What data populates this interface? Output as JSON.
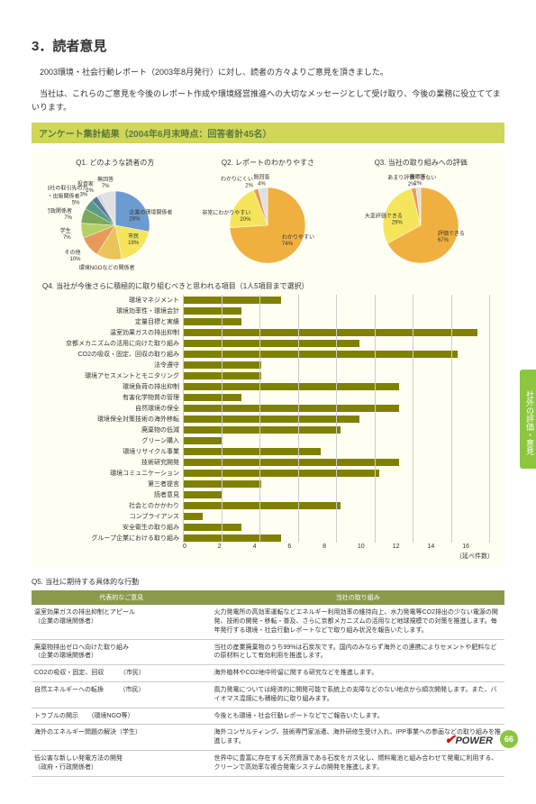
{
  "page": {
    "title": "3．読者意見",
    "intro1": "2003環境・社会行動レポート（2003年8月発行）に対し、読者の方々よりご意見を頂きました。",
    "intro2": "当社は、これらのご意見を今後のレポート作成や環境経営推進への大切なメッセージとして受け取り、今後の業務に役立ててまいります。",
    "banner": "アンケート集計結果（2004年6月末時点：回答者計45名）"
  },
  "q1": {
    "title": "Q1. どのような読者の方",
    "slices": [
      {
        "label": "企業の環境関係者",
        "pct": 28,
        "color": "#6b9bd1"
      },
      {
        "label": "市民",
        "pct": 19,
        "color": "#f5e55a"
      },
      {
        "label": "環境NGOなどの関係者",
        "pct": 12,
        "color": "#e8c45a"
      },
      {
        "label": "その他",
        "pct": 10,
        "color": "#e89a5a"
      },
      {
        "label": "学生",
        "pct": 7,
        "color": "#b5d065"
      },
      {
        "label": "政府・行政関係者",
        "pct": 7,
        "color": "#7ba85a"
      },
      {
        "label": "報道・出版関係者",
        "pct": 5,
        "color": "#5a9a8a"
      },
      {
        "label": "当社の取引先の方",
        "pct": 3,
        "color": "#5a7a9a"
      },
      {
        "label": "投資家",
        "pct": 2,
        "color": "#d4d4e0"
      },
      {
        "label": "無回答",
        "pct": 7,
        "color": "#e0e0e0"
      }
    ]
  },
  "q2": {
    "title": "Q2. レポートのわかりやすさ",
    "slices": [
      {
        "label": "わかりやすい",
        "pct": 74,
        "color": "#f0b040"
      },
      {
        "label": "非常にわかりやすい",
        "pct": 20,
        "color": "#f5e55a"
      },
      {
        "label": "わかりにくい",
        "pct": 2,
        "color": "#e89a5a"
      },
      {
        "label": "無回答",
        "pct": 4,
        "color": "#e0e0e0"
      }
    ]
  },
  "q3": {
    "title": "Q3. 当社の取り組みへの評価",
    "slices": [
      {
        "label": "評価できる",
        "pct": 67,
        "color": "#f0b040"
      },
      {
        "label": "大変評価できる",
        "pct": 29,
        "color": "#f5e55a"
      },
      {
        "label": "あまり評価できない",
        "pct": 2,
        "color": "#e89a5a"
      },
      {
        "label": "無回答",
        "pct": 2,
        "color": "#e0e0e0"
      }
    ]
  },
  "q4": {
    "title": "Q4. 当社が今後さらに積極的に取り組むべきと思われる項目（1人5項目まで選択）",
    "max": 16,
    "unit": "（延べ件数）",
    "items": [
      {
        "label": "環境マネジメント",
        "value": 5
      },
      {
        "label": "環境効率性・環境会計",
        "value": 3
      },
      {
        "label": "定量目標と実績",
        "value": 3
      },
      {
        "label": "温室効果ガスの排出抑制",
        "value": 15
      },
      {
        "label": "京都メカニズムの活用に向けた取り組み",
        "value": 9
      },
      {
        "label": "CO2の吸収・固定、回収の取り組み",
        "value": 14
      },
      {
        "label": "法令遵守",
        "value": 4
      },
      {
        "label": "環境アセスメントとモニタリング",
        "value": 4
      },
      {
        "label": "環境負荷の排出抑制",
        "value": 11
      },
      {
        "label": "有害化学物質の管理",
        "value": 3
      },
      {
        "label": "自然環境の保全",
        "value": 11
      },
      {
        "label": "環境保全対策技術の海外移転",
        "value": 9
      },
      {
        "label": "廃棄物の低減",
        "value": 8
      },
      {
        "label": "グリーン購入",
        "value": 2
      },
      {
        "label": "環境リサイクル事業",
        "value": 7
      },
      {
        "label": "技術研究開発",
        "value": 11
      },
      {
        "label": "環境コミュニケーション",
        "value": 10
      },
      {
        "label": "第三者提言",
        "value": 4
      },
      {
        "label": "読者意見",
        "value": 2
      },
      {
        "label": "社会とのかかわり",
        "value": 8
      },
      {
        "label": "コンプライアンス",
        "value": 1
      },
      {
        "label": "安全衛生の取り組み",
        "value": 3
      },
      {
        "label": "グループ企業における取り組み",
        "value": 5
      }
    ],
    "ticks": [
      0,
      2,
      4,
      6,
      8,
      10,
      12,
      14,
      16
    ]
  },
  "q5": {
    "title": "Q5. 当社に期待する具体的な行動",
    "th1": "代表的なご意見",
    "th2": "当社の取り組み",
    "rows": [
      {
        "l": "温室効果ガスの排出抑制とアピール\n（企業の環境関係者）",
        "r": "火力発電所の高効率運転などエネルギー利用効率の維持向上、水力発電等CO2排出の少ない電源の開発、技術の開発・移転・普及、さらに京都メカニズムの活用など地球規模での対策を推進します。毎年発行する環境・社会行動レポートなどで取り組み状況を報告いたします。"
      },
      {
        "l": "廃棄物排出ゼロへ向けた取り組み\n（企業の環境関係者）",
        "r": "当社の産業廃棄物のうち99%は石炭灰です。国内のみならず海外との連携によりセメントや肥料などの原材料として有効利用を推進します。"
      },
      {
        "l": "CO2の吸収・固定、回収　　　（市民）",
        "r": "海外植林やCO2地中貯留に関する研究などを推進します。"
      },
      {
        "l": "自然エネルギーへの転換　　　（市民）",
        "r": "風力発電については経済的に開発可能で系統上の支障などのない地点から順次開発します。また、バイオマス混焼にも積極的に取り組みます。"
      },
      {
        "l": "トラブルの開示　　（環境NGO等）",
        "r": "今後とも環境・社会行動レポートなどでご報告いたします。"
      },
      {
        "l": "海外のエネルギー問題の解決（学生）",
        "r": "海外コンサルティング、技術専門家派遣、海外研修生受け入れ、IPP事業への参画などの取り組みを推進します。"
      },
      {
        "l": "低公害な新しい発電方法の開発\n（政府・行政関係者）",
        "r": "世界中に豊富に存在する天然資源である石炭をガス化し、燃料電池と組み合わせて発電に利用する、クリーンで高効率な複合発電システムの開発を推進します。"
      }
    ]
  },
  "sideTab": "社外の評価・意見",
  "footer": {
    "logo": "POWER",
    "page": "66"
  }
}
